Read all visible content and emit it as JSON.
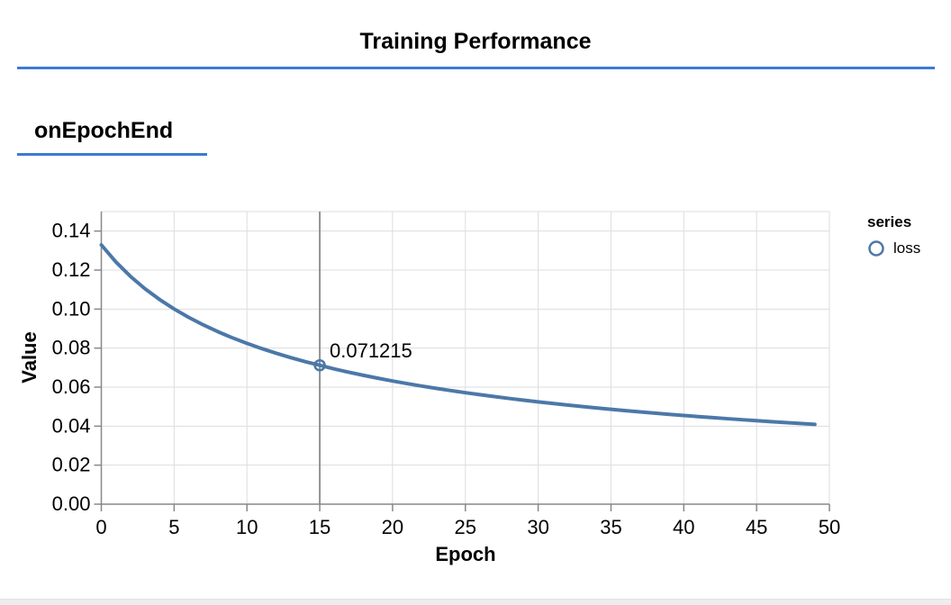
{
  "page": {
    "title": "Training Performance",
    "section_title": "onEpochEnd"
  },
  "colors": {
    "accent_rule": "#3d7ad3",
    "line": "#4c78a8",
    "axis": "#888888",
    "grid": "#dddddd",
    "hover_rule": "#737373",
    "bottom_bar": "#ededed"
  },
  "chart_data": {
    "type": "line",
    "xlabel": "Epoch",
    "ylabel": "Value",
    "xlim": [
      0,
      50
    ],
    "ylim": [
      0,
      0.15
    ],
    "grid": true,
    "x_ticks": [
      0,
      5,
      10,
      15,
      20,
      25,
      30,
      35,
      40,
      45,
      50
    ],
    "x_tick_labels": [
      "0",
      "5",
      "10",
      "15",
      "20",
      "25",
      "30",
      "35",
      "40",
      "45",
      "50"
    ],
    "y_ticks": [
      0,
      0.02,
      0.04,
      0.06,
      0.08,
      0.1,
      0.12,
      0.14
    ],
    "y_tick_labels": [
      "0.00",
      "0.02",
      "0.04",
      "0.06",
      "0.08",
      "0.10",
      "0.12",
      "0.14"
    ],
    "legend": {
      "position": "right",
      "title": "series",
      "entries": [
        {
          "label": "loss",
          "symbol": "circle-outline"
        }
      ]
    },
    "series": [
      {
        "name": "loss",
        "x": [
          0,
          1,
          2,
          3,
          4,
          5,
          6,
          7,
          8,
          9,
          10,
          11,
          12,
          13,
          14,
          15,
          16,
          17,
          18,
          19,
          20,
          21,
          22,
          23,
          24,
          25,
          26,
          27,
          28,
          29,
          30,
          31,
          32,
          33,
          34,
          35,
          36,
          37,
          38,
          39,
          40,
          41,
          42,
          43,
          44,
          45,
          46,
          47,
          48,
          49
        ],
        "values": [
          0.132925,
          0.124167,
          0.116779,
          0.110429,
          0.104921,
          0.100071,
          0.095774,
          0.091918,
          0.088447,
          0.0853,
          0.082434,
          0.079807,
          0.077384,
          0.075148,
          0.07307,
          0.071215,
          0.069325,
          0.067634,
          0.066051,
          0.064563,
          0.063151,
          0.061821,
          0.06056,
          0.059367,
          0.058232,
          0.057153,
          0.056122,
          0.055142,
          0.054207,
          0.05331,
          0.052447,
          0.051625,
          0.050831,
          0.05007,
          0.049339,
          0.048634,
          0.047953,
          0.047305,
          0.046671,
          0.046059,
          0.045473,
          0.044903,
          0.04435,
          0.043816,
          0.043297,
          0.042792,
          0.042302,
          0.041831,
          0.041373,
          0.040928
        ]
      }
    ],
    "hover": {
      "epoch": 15,
      "value": 0.071215,
      "label": "0.071215"
    }
  }
}
